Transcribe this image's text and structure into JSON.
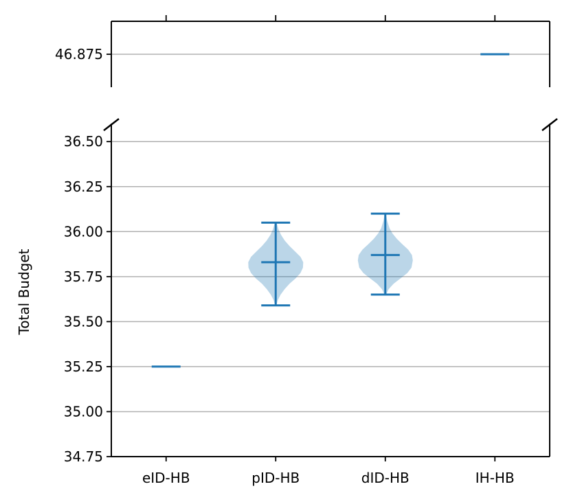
{
  "chart_data": {
    "type": "violin",
    "categories": [
      "eID-HB",
      "pID-HB",
      "dID-HB",
      "IH-HB"
    ],
    "ylabel": "Total Budget",
    "xlabel": "",
    "title": "",
    "broken_axis": true,
    "upper_panel": {
      "ylim": [
        46.82,
        46.93
      ],
      "yticks": [
        "46.875"
      ]
    },
    "lower_panel": {
      "ylim": [
        34.75,
        36.6
      ],
      "yticks": [
        "34.75",
        "35.00",
        "35.25",
        "35.50",
        "35.75",
        "36.00",
        "36.25",
        "36.50"
      ]
    },
    "grid": "horizontal",
    "series": [
      {
        "category": "eID-HB",
        "min": 35.25,
        "max": 35.25,
        "mean": 35.25,
        "density": []
      },
      {
        "category": "pID-HB",
        "min": 35.59,
        "max": 36.05,
        "mean": 35.83,
        "density": [
          [
            35.59,
            0.02
          ],
          [
            35.62,
            0.08
          ],
          [
            35.65,
            0.18
          ],
          [
            35.68,
            0.32
          ],
          [
            35.71,
            0.5
          ],
          [
            35.74,
            0.72
          ],
          [
            35.77,
            0.9
          ],
          [
            35.8,
            0.99
          ],
          [
            35.83,
            1.0
          ],
          [
            35.86,
            0.9
          ],
          [
            35.89,
            0.7
          ],
          [
            35.92,
            0.5
          ],
          [
            35.95,
            0.33
          ],
          [
            35.98,
            0.2
          ],
          [
            36.01,
            0.11
          ],
          [
            36.05,
            0.03
          ]
        ]
      },
      {
        "category": "dID-HB",
        "min": 35.65,
        "max": 36.1,
        "mean": 35.87,
        "density": [
          [
            35.65,
            0.03
          ],
          [
            35.68,
            0.12
          ],
          [
            35.71,
            0.3
          ],
          [
            35.74,
            0.55
          ],
          [
            35.77,
            0.8
          ],
          [
            35.8,
            0.95
          ],
          [
            35.84,
            1.0
          ],
          [
            35.87,
            0.97
          ],
          [
            35.9,
            0.83
          ],
          [
            35.93,
            0.62
          ],
          [
            35.96,
            0.42
          ],
          [
            35.99,
            0.26
          ],
          [
            36.02,
            0.15
          ],
          [
            36.06,
            0.07
          ],
          [
            36.1,
            0.02
          ]
        ]
      },
      {
        "category": "IH-HB",
        "min": 46.875,
        "max": 46.875,
        "mean": 46.875,
        "density": []
      }
    ],
    "colors": {
      "line": "#1f77b4",
      "body": "#1f77b4",
      "grid": "#b0b0b0"
    }
  }
}
